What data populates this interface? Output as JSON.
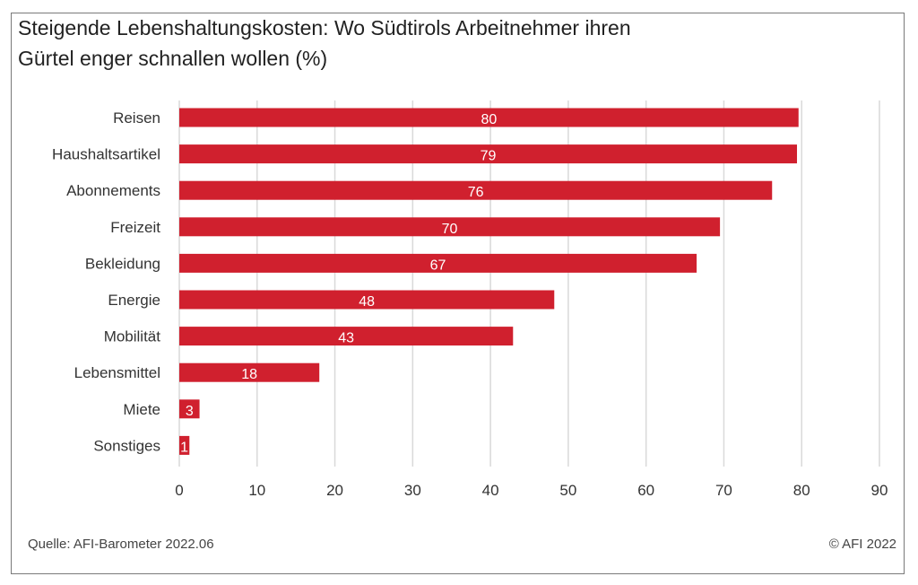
{
  "chart_data": {
    "type": "bar",
    "orientation": "horizontal",
    "title_lines": [
      "Steigende Lebenshaltungskosten: Wo Südtirols Arbeitnehmer ihren",
      "Gürtel enger schnallen wollen (%)"
    ],
    "categories": [
      "Reisen",
      "Haushaltsartikel",
      "Abonnements",
      "Freizeit",
      "Bekleidung",
      "Energie",
      "Mobilität",
      "Lebensmittel",
      "Miete",
      "Sonstiges"
    ],
    "values": [
      80,
      79,
      76,
      70,
      67,
      48,
      43,
      18,
      3,
      1
    ],
    "bar_values": [
      79.6,
      79.4,
      76.2,
      69.5,
      66.5,
      48.2,
      42.9,
      18.0,
      2.6,
      1.3
    ],
    "xlim": [
      0,
      90
    ],
    "xticks": [
      0,
      10,
      20,
      30,
      40,
      50,
      60,
      70,
      80,
      90
    ],
    "xlabel": "",
    "ylabel": "",
    "grid": true,
    "bar_color": "#d0202e",
    "grid_color": "#d9d9d9"
  },
  "footer": {
    "source": "Quelle: AFI-Barometer 2022.06",
    "copyright": "© AFI 2022"
  }
}
